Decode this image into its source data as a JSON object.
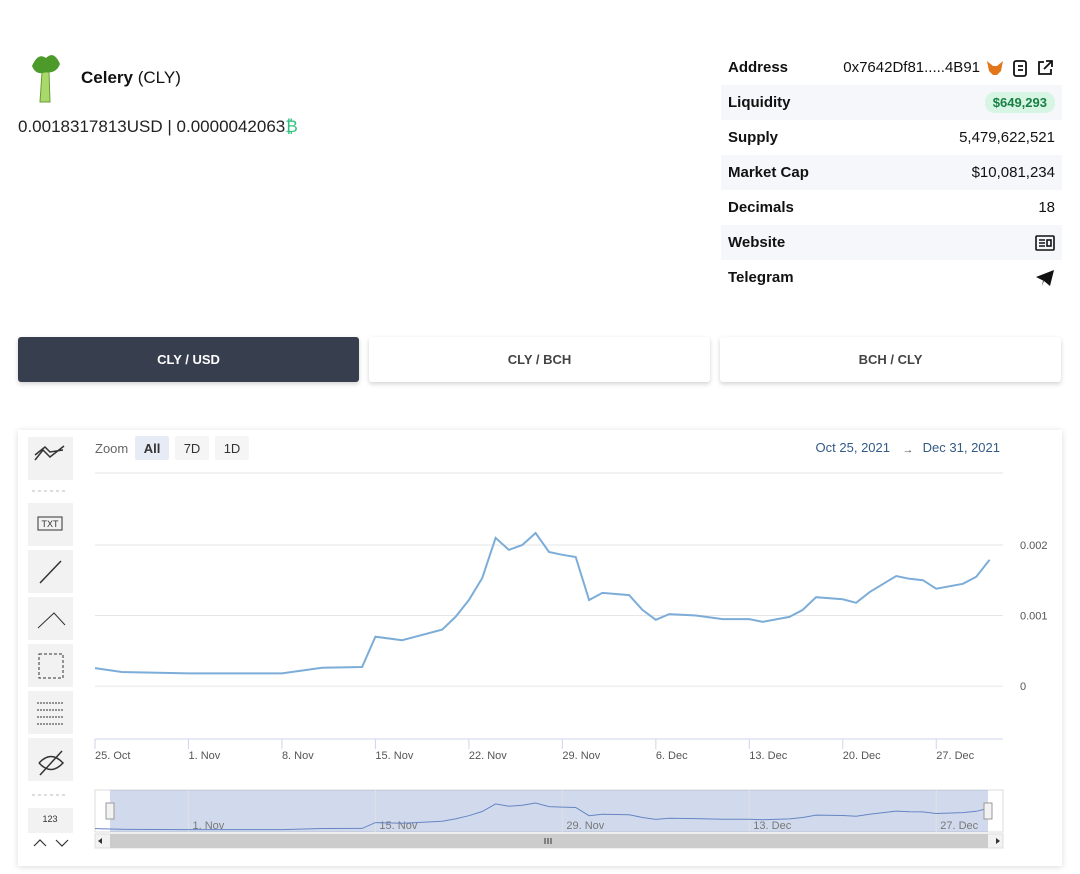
{
  "header": {
    "name": "Celery",
    "symbol": "(CLY)",
    "price_usd": "0.0018317813",
    "usd_unit": "USD",
    "separator": "|",
    "price_bch": "0.0000042063",
    "bch_unit": "₿"
  },
  "info": {
    "rows": [
      {
        "label": "Address",
        "value": "0x7642Df81.....4B91"
      },
      {
        "label": "Liquidity",
        "value": "$649,293"
      },
      {
        "label": "Supply",
        "value": "5,479,622,521"
      },
      {
        "label": "Market Cap",
        "value": "$10,081,234"
      },
      {
        "label": "Decimals",
        "value": "18"
      },
      {
        "label": "Website"
      },
      {
        "label": "Telegram"
      }
    ]
  },
  "tabs": [
    "CLY / USD",
    "CLY / BCH",
    "BCH / CLY"
  ],
  "toolbar": {
    "counter_label": "123"
  },
  "chart_data": {
    "type": "line",
    "zoom_label": "Zoom",
    "zoom_buttons": [
      "All",
      "7D",
      "1D"
    ],
    "range_start": "Oct 25, 2021",
    "range_arrow": "→",
    "range_end": "Dec 31, 2021",
    "color": "#7cadd8",
    "x": [
      "2021-10-25",
      "2021-10-27",
      "2021-11-01",
      "2021-11-08",
      "2021-11-11",
      "2021-11-14",
      "2021-11-15",
      "2021-11-17",
      "2021-11-18",
      "2021-11-20",
      "2021-11-21",
      "2021-11-22",
      "2021-11-23",
      "2021-11-24",
      "2021-11-25",
      "2021-11-26",
      "2021-11-27",
      "2021-11-28",
      "2021-11-29",
      "2021-11-30",
      "2021-12-01",
      "2021-12-02",
      "2021-12-04",
      "2021-12-05",
      "2021-12-06",
      "2021-12-07",
      "2021-12-09",
      "2021-12-11",
      "2021-12-13",
      "2021-12-14",
      "2021-12-16",
      "2021-12-17",
      "2021-12-18",
      "2021-12-20",
      "2021-12-21",
      "2021-12-22",
      "2021-12-24",
      "2021-12-25",
      "2021-12-26",
      "2021-12-27",
      "2021-12-29",
      "2021-12-30",
      "2021-12-31"
    ],
    "values": [
      0.000255,
      0.0002,
      0.00018,
      0.00018,
      0.00026,
      0.00027,
      0.0007,
      0.00065,
      0.0007,
      0.0008,
      0.00098,
      0.00122,
      0.00153,
      0.0021,
      0.00193,
      0.002,
      0.00217,
      0.0019,
      0.00186,
      0.00183,
      0.00122,
      0.00132,
      0.00129,
      0.00108,
      0.00094,
      0.00102,
      0.001,
      0.00095,
      0.00095,
      0.00091,
      0.00098,
      0.00108,
      0.00126,
      0.00123,
      0.00118,
      0.00133,
      0.00156,
      0.00152,
      0.0015,
      0.00138,
      0.00145,
      0.00155,
      0.00179
    ],
    "xlim": [
      "2021-10-25",
      "2022-01-01"
    ],
    "ylim": [
      -0.00075,
      0.00302
    ],
    "yticks": [
      0,
      0.001,
      0.002
    ],
    "xticks": [
      {
        "value": "2021-10-25",
        "label": "25. Oct"
      },
      {
        "value": "2021-11-01",
        "label": "1. Nov"
      },
      {
        "value": "2021-11-08",
        "label": "8. Nov"
      },
      {
        "value": "2021-11-15",
        "label": "15. Nov"
      },
      {
        "value": "2021-11-22",
        "label": "22. Nov"
      },
      {
        "value": "2021-11-29",
        "label": "29. Nov"
      },
      {
        "value": "2021-12-06",
        "label": "6. Dec"
      },
      {
        "value": "2021-12-13",
        "label": "13. Dec"
      },
      {
        "value": "2021-12-20",
        "label": "20. Dec"
      },
      {
        "value": "2021-12-27",
        "label": "27. Dec"
      }
    ],
    "grid": true
  }
}
